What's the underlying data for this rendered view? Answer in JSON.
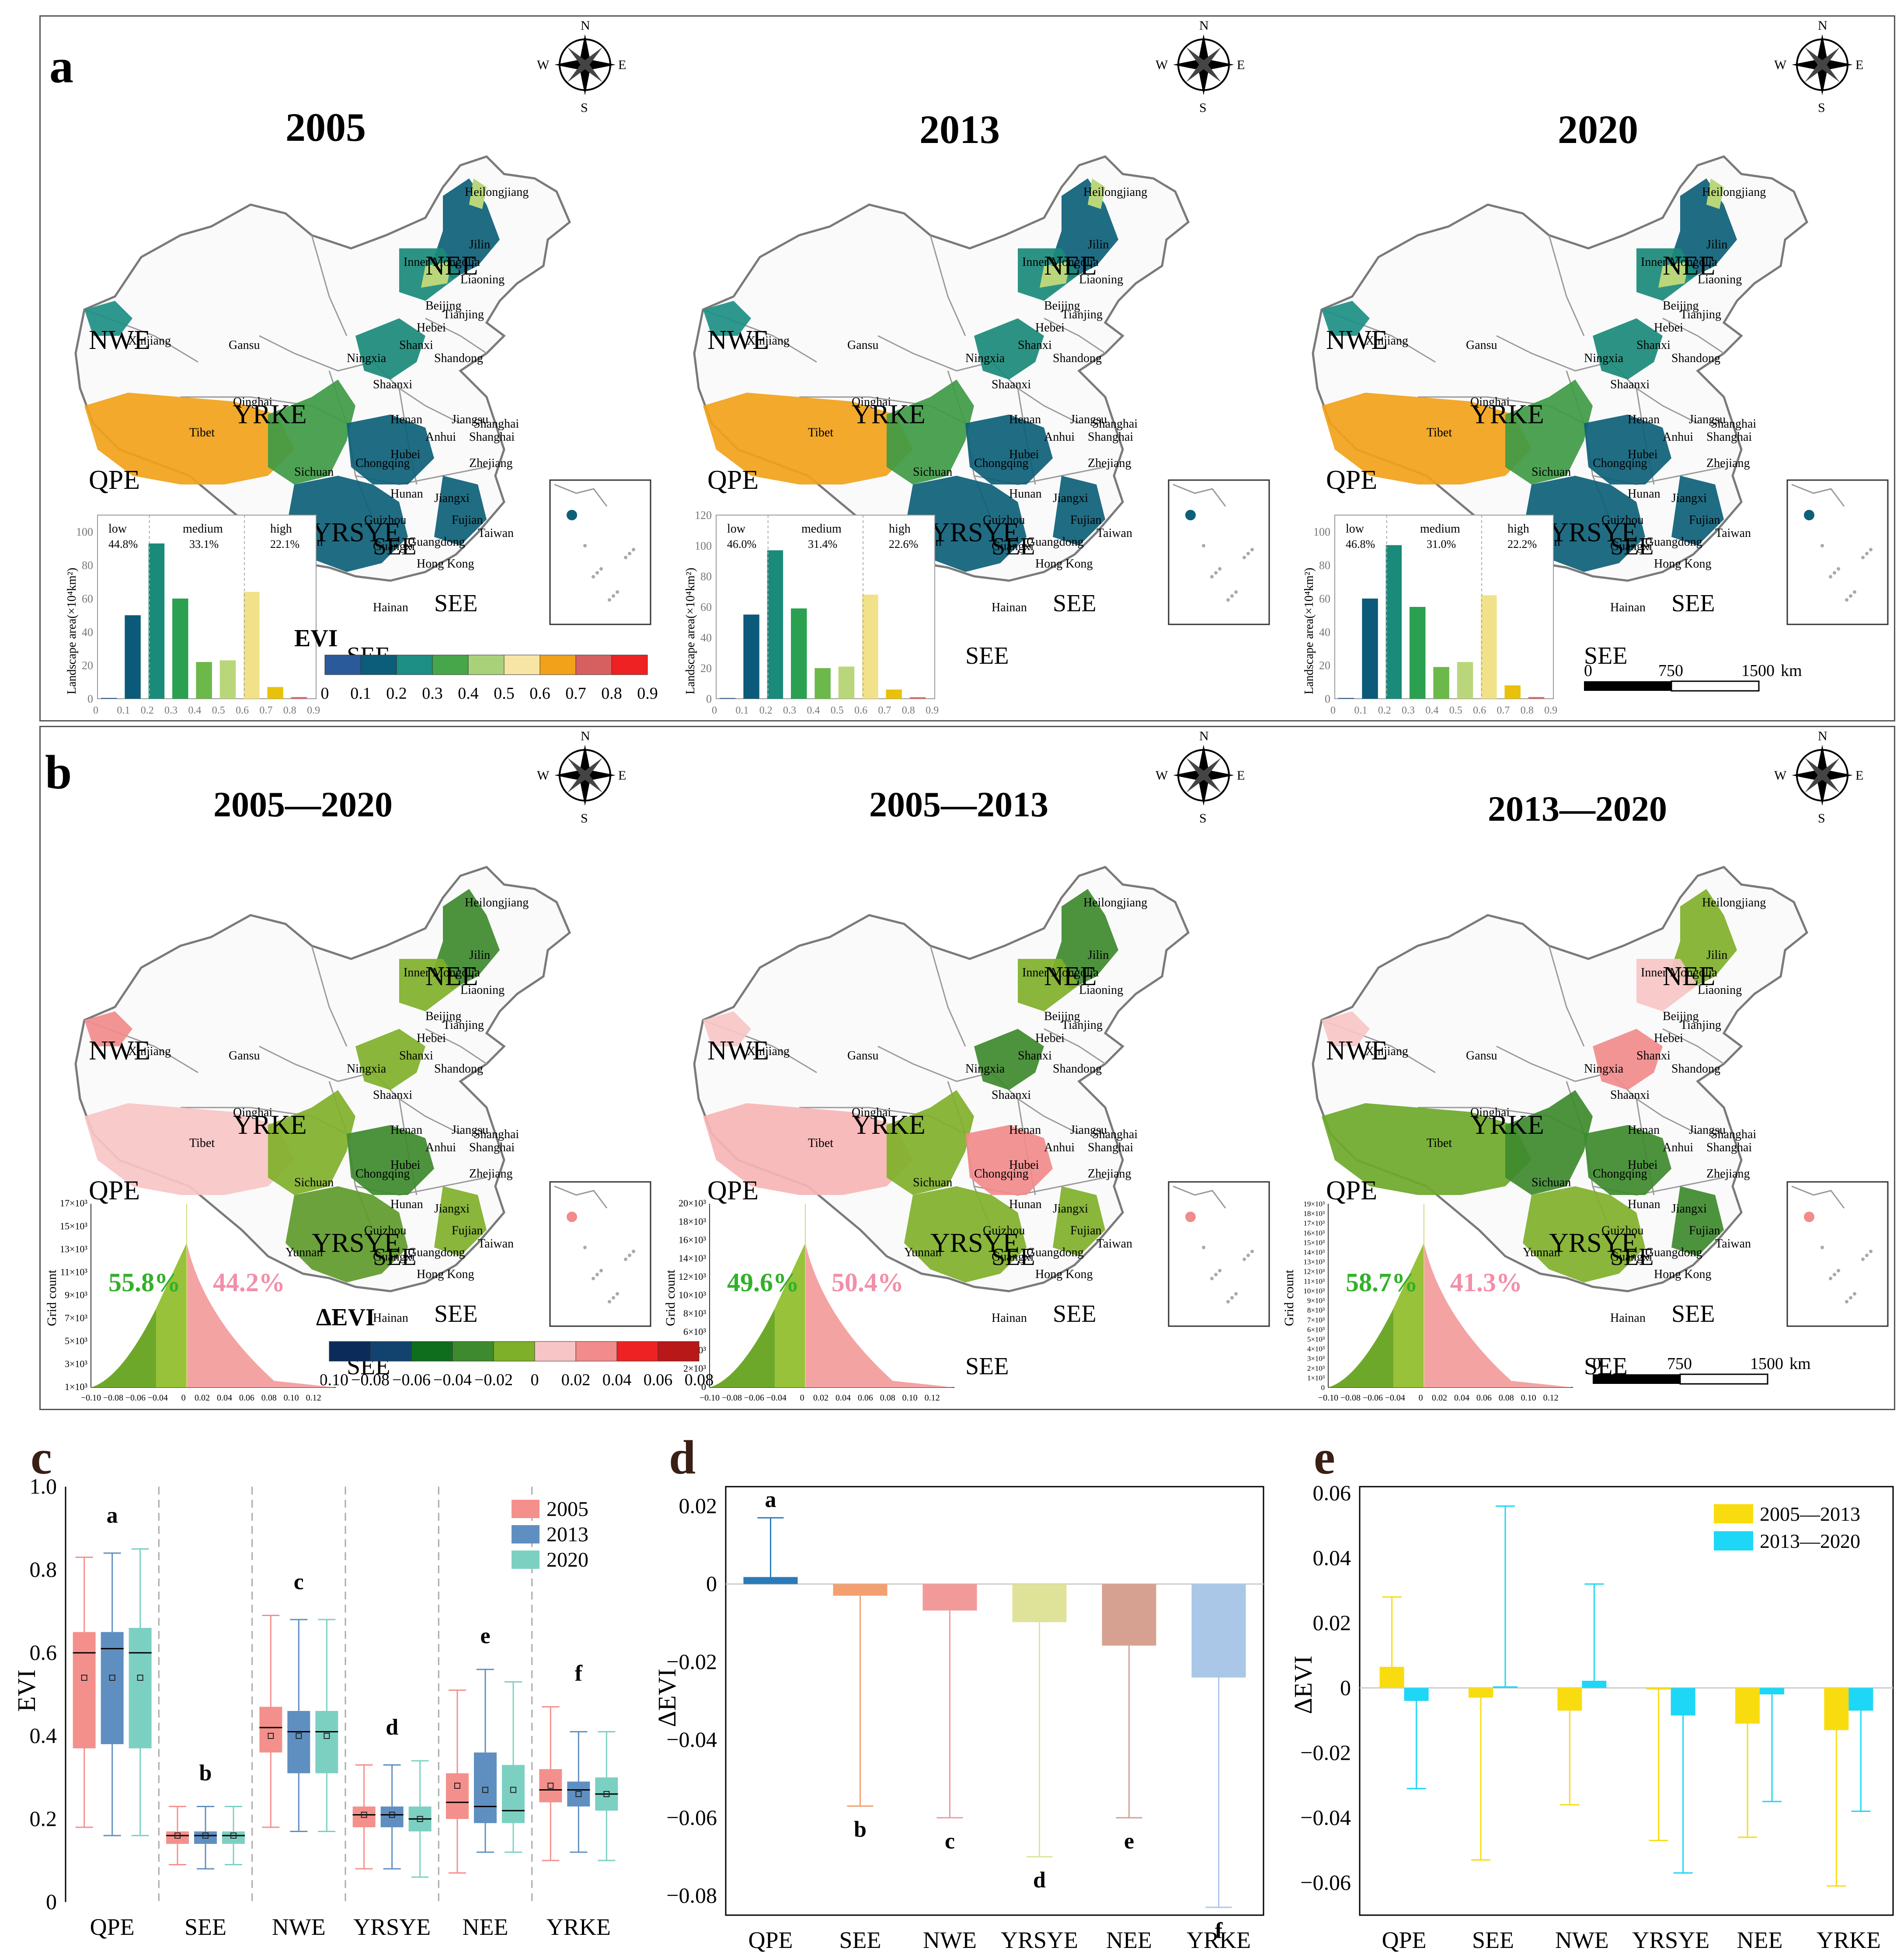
{
  "panels": {
    "a": {
      "label": "a",
      "maps": [
        {
          "year": "2005",
          "low": "44.8%",
          "medium": "33.1%",
          "high": "22.1%",
          "bars": [
            0.5,
            50,
            93,
            60,
            22,
            23,
            64,
            7,
            1
          ],
          "bar_yticks": [
            "0",
            "20",
            "40",
            "60",
            "80",
            "100"
          ]
        },
        {
          "year": "2013",
          "low": "46.0%",
          "medium": "31.4%",
          "high": "22.6%",
          "bars": [
            0.5,
            55,
            97,
            59,
            20,
            21,
            68,
            6,
            1
          ],
          "bar_yticks": [
            "0",
            "20",
            "40",
            "60",
            "80",
            "100",
            "120"
          ]
        },
        {
          "year": "2020",
          "low": "46.8%",
          "medium": "31.0%",
          "high": "22.2%",
          "bars": [
            0.5,
            60,
            92,
            55,
            19,
            22,
            62,
            8,
            1
          ],
          "bar_yticks": [
            "0",
            "20",
            "40",
            "60",
            "80",
            "100"
          ]
        }
      ],
      "bar_xticks": [
        "0",
        "0.1",
        "0.2",
        "0.3",
        "0.4",
        "0.5",
        "0.6",
        "0.7",
        "0.8",
        "0.9"
      ],
      "bar_ylabel": "Landscape area(×10⁴km²)",
      "bar_colors": [
        "#3a5e9c",
        "#0b5a7a",
        "#1a8a7a",
        "#2aa050",
        "#6cb84a",
        "#b9d77a",
        "#f1e189",
        "#e8c20a",
        "#d66a6a"
      ],
      "legend_title": "EVI",
      "legend_ticks": [
        "0",
        "0.1",
        "0.2",
        "0.3",
        "0.4",
        "0.5",
        "0.6",
        "0.7",
        "0.8",
        "0.9"
      ],
      "legend_colors": [
        "#2a5a9a",
        "#0b5d7a",
        "#1d8f84",
        "#47a64a",
        "#a9d17a",
        "#f6e5a5",
        "#f1a21a",
        "#d66060",
        "#ee2222"
      ],
      "class_labels": {
        "low": "low",
        "medium": "medium",
        "high": "high"
      },
      "scalebar": {
        "ticks": [
          "0",
          "750",
          "1500"
        ],
        "unit": "km"
      }
    },
    "b": {
      "label": "b",
      "maps": [
        {
          "period": "2005—2020",
          "neg": "55.8%",
          "pos": "44.2%",
          "yticks": [
            "1×10³",
            "3×10³",
            "5×10³",
            "7×10³",
            "9×10³",
            "11×10³",
            "13×10³",
            "15×10³",
            "17×10³"
          ]
        },
        {
          "period": "2005—2013",
          "neg": "49.6%",
          "pos": "50.4%",
          "yticks": [
            "0",
            "2×10³",
            "4×10³",
            "6×10³",
            "8×10³",
            "10×10³",
            "12×10³",
            "14×10³",
            "16×10³",
            "18×10³",
            "20×10³"
          ]
        },
        {
          "period": "2013—2020",
          "neg": "58.7%",
          "pos": "41.3%",
          "yticks": [
            "0",
            "1×10³",
            "2×10³",
            "3×10³",
            "4×10³",
            "5×10³",
            "6×10³",
            "7×10³",
            "8×10³",
            "9×10³",
            "10×10³",
            "11×10³",
            "12×10³",
            "13×10³",
            "14×10³",
            "15×10³",
            "16×10³",
            "17×10³",
            "18×10³",
            "19×10³"
          ]
        }
      ],
      "hist_ylabel": "Grid count",
      "hist_xticks": [
        "−0.10",
        "−0.08",
        "−0.06",
        "−0.04",
        "0",
        "0.02",
        "0.04",
        "0.06",
        "0.08",
        "0.10",
        "0.12"
      ],
      "legend_title": "ΔEVI",
      "legend_ticks": [
        "−0.10",
        "−0.08",
        "−0.06",
        "−0.04",
        "−0.02",
        "0",
        "0.02",
        "0.04",
        "0.06",
        "0.08"
      ],
      "legend_colors": [
        "#0b2b5a",
        "#12436e",
        "#0f6e1e",
        "#3e8a2e",
        "#7fb02a",
        "#f7c5c5",
        "#f28b8b",
        "#ee2222",
        "#b81818"
      ],
      "scalebar": {
        "ticks": [
          "0",
          "750",
          "1500"
        ],
        "unit": "km"
      }
    }
  },
  "map_labels": {
    "regions": [
      "NWE",
      "QPE",
      "YRKE",
      "NEE",
      "YRSYE",
      "SEE",
      "SEE",
      "SEE"
    ],
    "provinces": [
      "Heilongjiang",
      "Jilin",
      "Liaoning",
      "Inner Mongolia",
      "Beijing",
      "Tianjing",
      "Hebei",
      "Shanxi",
      "Shandong",
      "Ningxia",
      "Shaanxi",
      "Henan",
      "Jiangsu",
      "Shanghai",
      "Anhui",
      "Shanghai",
      "Hubei",
      "Zhejiang",
      "Chongqing",
      "Sichuan",
      "Hunan",
      "Jiangxi",
      "Fujian",
      "Guizhou",
      "Taiwan",
      "Yunnan",
      "Guangdong",
      "Guangxi",
      "Hong Kong",
      "Hainan",
      "Xinjiang",
      "Gansu",
      "Qinghai",
      "Tibet"
    ],
    "compass": {
      "n": "N",
      "s": "S",
      "e": "E",
      "w": "W"
    }
  },
  "chart_data": [
    {
      "panel": "c",
      "type": "box",
      "ylabel": "EVI",
      "ylim": [
        0,
        1.0
      ],
      "yticks": [
        "0",
        "0.2",
        "0.4",
        "0.6",
        "0.8",
        "1.0"
      ],
      "categories": [
        "QPE",
        "SEE",
        "NWE",
        "YRSYE",
        "NEE",
        "YRKE"
      ],
      "letters": [
        "a",
        "b",
        "c",
        "d",
        "e",
        "f"
      ],
      "series": [
        {
          "name": "2005",
          "color": "#f4908c",
          "stats": [
            [
              0.18,
              0.37,
              0.6,
              0.65,
              0.83,
              0.54
            ],
            [
              0.09,
              0.14,
              0.16,
              0.17,
              0.23,
              0.16
            ],
            [
              0.18,
              0.36,
              0.42,
              0.47,
              0.69,
              0.4
            ],
            [
              0.08,
              0.18,
              0.21,
              0.23,
              0.33,
              0.21
            ],
            [
              0.07,
              0.2,
              0.24,
              0.31,
              0.51,
              0.28
            ],
            [
              0.1,
              0.24,
              0.27,
              0.32,
              0.47,
              0.28
            ]
          ]
        },
        {
          "name": "2013",
          "color": "#5f8fc0",
          "stats": [
            [
              0.16,
              0.38,
              0.61,
              0.65,
              0.84,
              0.54
            ],
            [
              0.08,
              0.14,
              0.16,
              0.17,
              0.23,
              0.16
            ],
            [
              0.17,
              0.31,
              0.41,
              0.46,
              0.68,
              0.4
            ],
            [
              0.08,
              0.18,
              0.21,
              0.23,
              0.33,
              0.21
            ],
            [
              0.12,
              0.19,
              0.23,
              0.36,
              0.56,
              0.27
            ],
            [
              0.12,
              0.23,
              0.27,
              0.29,
              0.41,
              0.26
            ]
          ]
        },
        {
          "name": "2020",
          "color": "#7cd0c1",
          "stats": [
            [
              0.16,
              0.37,
              0.6,
              0.66,
              0.85,
              0.54
            ],
            [
              0.09,
              0.14,
              0.16,
              0.17,
              0.23,
              0.16
            ],
            [
              0.17,
              0.31,
              0.41,
              0.46,
              0.68,
              0.4
            ],
            [
              0.06,
              0.17,
              0.2,
              0.23,
              0.34,
              0.2
            ],
            [
              0.12,
              0.19,
              0.22,
              0.33,
              0.53,
              0.27
            ],
            [
              0.1,
              0.22,
              0.26,
              0.3,
              0.41,
              0.26
            ]
          ]
        }
      ]
    },
    {
      "panel": "d",
      "type": "bar",
      "ylabel": "ΔEVI",
      "ylim": [
        -0.085,
        0.025
      ],
      "yticks": [
        "0.02",
        "0",
        "−0.02",
        "−0.04",
        "−0.06",
        "−0.08"
      ],
      "ytick_values": [
        0.02,
        0,
        -0.02,
        -0.04,
        -0.06,
        -0.08
      ],
      "categories": [
        "QPE",
        "SEE",
        "NWE",
        "YRSYE",
        "NEE",
        "YRKE"
      ],
      "values": [
        0.0018,
        -0.003,
        -0.0068,
        -0.0098,
        -0.0158,
        -0.024
      ],
      "error_ends": [
        0.017,
        -0.057,
        -0.06,
        -0.07,
        -0.06,
        -0.083
      ],
      "letters": [
        "a",
        "b",
        "c",
        "d",
        "e",
        "f"
      ],
      "colors": [
        "#2a7ab8",
        "#f2a070",
        "#f29a9a",
        "#dfe39a",
        "#d6a190",
        "#aac7e8"
      ]
    },
    {
      "panel": "e",
      "type": "bar",
      "ylabel": "ΔEVI",
      "ylim": [
        -0.07,
        0.062
      ],
      "yticks": [
        "0.06",
        "0.04",
        "0.02",
        "0",
        "−0.02",
        "−0.04",
        "−0.06"
      ],
      "ytick_values": [
        0.06,
        0.04,
        0.02,
        0,
        -0.02,
        -0.04,
        -0.06
      ],
      "categories": [
        "QPE",
        "SEE",
        "NWE",
        "YRSYE",
        "NEE",
        "YRKE"
      ],
      "series": [
        {
          "name": "2005—2013",
          "color": "#f9dc10",
          "values": [
            0.0065,
            -0.003,
            -0.007,
            -0.0005,
            -0.011,
            -0.013
          ],
          "error_ends": [
            0.028,
            -0.053,
            -0.036,
            -0.047,
            -0.046,
            -0.061
          ]
        },
        {
          "name": "2013—2020",
          "color": "#1ed6f5",
          "values": [
            -0.004,
            0.0005,
            0.0022,
            -0.0085,
            -0.002,
            -0.007
          ],
          "error_ends": [
            -0.031,
            0.056,
            0.032,
            -0.057,
            -0.035,
            -0.038
          ]
        }
      ]
    }
  ],
  "panel_letters": {
    "c": "c",
    "d": "d",
    "e": "e"
  }
}
